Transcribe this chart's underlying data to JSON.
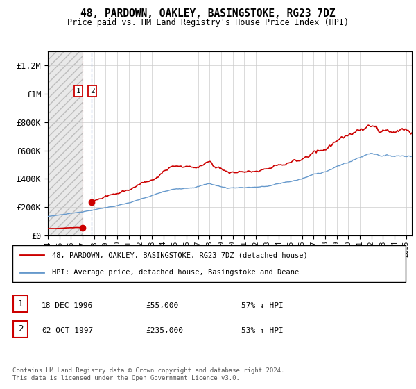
{
  "title": "48, PARDOWN, OAKLEY, BASINGSTOKE, RG23 7DZ",
  "subtitle": "Price paid vs. HM Land Registry's House Price Index (HPI)",
  "legend_line1": "48, PARDOWN, OAKLEY, BASINGSTOKE, RG23 7DZ (detached house)",
  "legend_line2": "HPI: Average price, detached house, Basingstoke and Deane",
  "table_row1_num": "1",
  "table_row1_date": "18-DEC-1996",
  "table_row1_price": "£55,000",
  "table_row1_hpi": "57% ↓ HPI",
  "table_row2_num": "2",
  "table_row2_date": "02-OCT-1997",
  "table_row2_price": "£235,000",
  "table_row2_hpi": "53% ↑ HPI",
  "footnote": "Contains HM Land Registry data © Crown copyright and database right 2024.\nThis data is licensed under the Open Government Licence v3.0.",
  "sale1_year": 1996.97,
  "sale1_price": 55000,
  "sale2_year": 1997.75,
  "sale2_price": 235000,
  "red_line_color": "#cc0000",
  "blue_line_color": "#6699cc",
  "ylim_max": 1300000,
  "xmin": 1994,
  "xmax": 2025.5
}
